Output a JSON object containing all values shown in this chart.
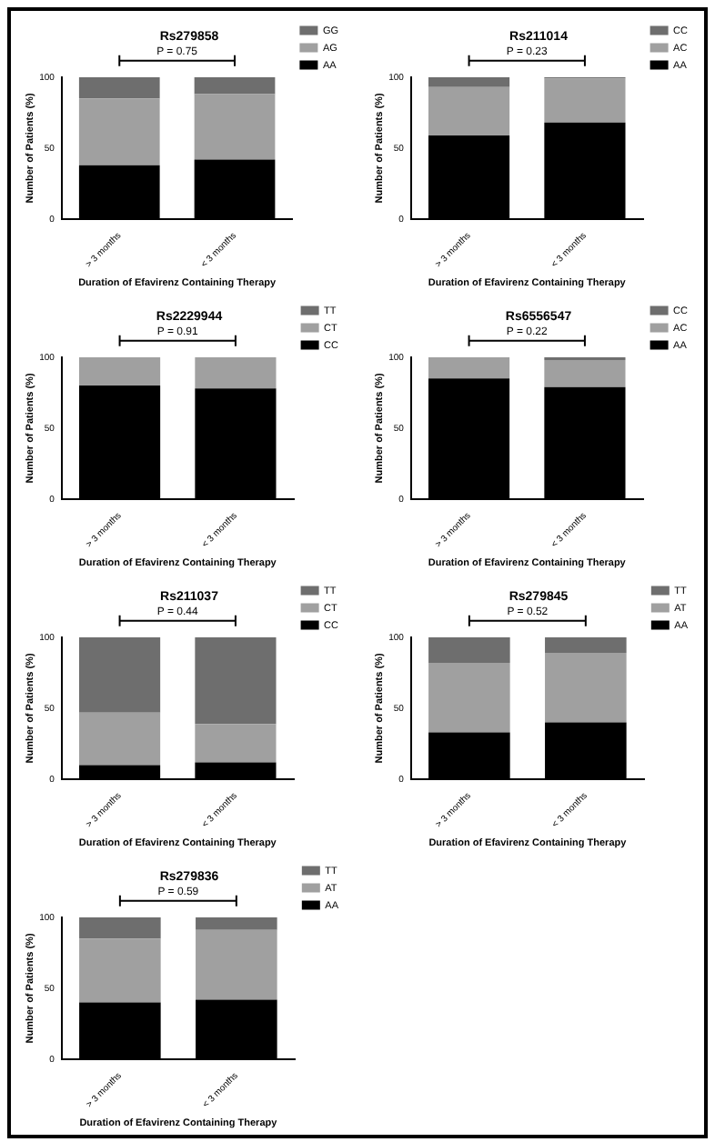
{
  "chart_data": [
    {
      "type": "bar",
      "title": "Rs279858",
      "xlabel": "Duration of Efavirenz Containing Therapy",
      "ylabel": "Number of Patients (%)",
      "categories": [
        "> 3 months",
        "< 3 months"
      ],
      "stacked": true,
      "ylim": [
        0,
        100
      ],
      "yticks": [
        0,
        50,
        100
      ],
      "grid": false,
      "legend": "right",
      "annotations": [
        "P = 0.75"
      ],
      "series": [
        {
          "name": "AA",
          "color": "#000000",
          "values": [
            38,
            42
          ]
        },
        {
          "name": "AG",
          "color": "#a0a0a0",
          "values": [
            47,
            46
          ]
        },
        {
          "name": "GG",
          "color": "#6e6e6e",
          "values": [
            15,
            12
          ]
        }
      ]
    },
    {
      "type": "bar",
      "title": "Rs211014",
      "xlabel": "Duration of Efavirenz Containing Therapy",
      "ylabel": "Number of Patients (%)",
      "categories": [
        "> 3 months",
        "< 3 months"
      ],
      "stacked": true,
      "ylim": [
        0,
        100
      ],
      "yticks": [
        0,
        50,
        100
      ],
      "grid": false,
      "legend": "right",
      "annotations": [
        "P = 0.23"
      ],
      "series": [
        {
          "name": "AA",
          "color": "#000000",
          "values": [
            59,
            68
          ]
        },
        {
          "name": "AC",
          "color": "#a0a0a0",
          "values": [
            34,
            31
          ]
        },
        {
          "name": "CC",
          "color": "#6e6e6e",
          "values": [
            7,
            1
          ]
        }
      ]
    },
    {
      "type": "bar",
      "title": "Rs2229944",
      "xlabel": "Duration of Efavirenz Containing Therapy",
      "ylabel": "Number of Patients (%)",
      "categories": [
        "> 3 months",
        "< 3 months"
      ],
      "stacked": true,
      "ylim": [
        0,
        100
      ],
      "yticks": [
        0,
        50,
        100
      ],
      "grid": false,
      "legend": "right",
      "annotations": [
        "P = 0.91"
      ],
      "series": [
        {
          "name": "CC",
          "color": "#000000",
          "values": [
            80,
            78
          ]
        },
        {
          "name": "CT",
          "color": "#a0a0a0",
          "values": [
            20,
            22
          ]
        },
        {
          "name": "TT",
          "color": "#6e6e6e",
          "values": [
            0,
            0
          ]
        }
      ]
    },
    {
      "type": "bar",
      "title": "Rs6556547",
      "xlabel": "Duration of Efavirenz Containing Therapy",
      "ylabel": "Number of Patients (%)",
      "categories": [
        "> 3 months",
        "< 3 months"
      ],
      "stacked": true,
      "ylim": [
        0,
        100
      ],
      "yticks": [
        0,
        50,
        100
      ],
      "grid": false,
      "legend": "right",
      "annotations": [
        "P = 0.22"
      ],
      "series": [
        {
          "name": "AA",
          "color": "#000000",
          "values": [
            85,
            79
          ]
        },
        {
          "name": "AC",
          "color": "#a0a0a0",
          "values": [
            15,
            19
          ]
        },
        {
          "name": "CC",
          "color": "#6e6e6e",
          "values": [
            0,
            2
          ]
        }
      ]
    },
    {
      "type": "bar",
      "title": "Rs211037",
      "xlabel": "Duration of Efavirenz Containing Therapy",
      "ylabel": "Number of Patients (%)",
      "categories": [
        "> 3 months",
        "< 3 months"
      ],
      "stacked": true,
      "ylim": [
        0,
        100
      ],
      "yticks": [
        0,
        50,
        100
      ],
      "grid": false,
      "legend": "right",
      "annotations": [
        "P = 0.44"
      ],
      "series": [
        {
          "name": "CC",
          "color": "#000000",
          "values": [
            10,
            12
          ]
        },
        {
          "name": "CT",
          "color": "#a0a0a0",
          "values": [
            37,
            27
          ]
        },
        {
          "name": "TT",
          "color": "#6e6e6e",
          "values": [
            53,
            61
          ]
        }
      ]
    },
    {
      "type": "bar",
      "title": "Rs279845",
      "xlabel": "Duration of Efavirenz Containing Therapy",
      "ylabel": "Number of Patients (%)",
      "categories": [
        "> 3 months",
        "< 3 months"
      ],
      "stacked": true,
      "ylim": [
        0,
        100
      ],
      "yticks": [
        0,
        50,
        100
      ],
      "grid": false,
      "legend": "right",
      "annotations": [
        "P = 0.52"
      ],
      "series": [
        {
          "name": "AA",
          "color": "#000000",
          "values": [
            33,
            40
          ]
        },
        {
          "name": "AT",
          "color": "#a0a0a0",
          "values": [
            49,
            49
          ]
        },
        {
          "name": "TT",
          "color": "#6e6e6e",
          "values": [
            18,
            11
          ]
        }
      ]
    },
    {
      "type": "bar",
      "title": "Rs279836",
      "xlabel": "Duration of Efavirenz Containing Therapy",
      "ylabel": "Number of Patients (%)",
      "categories": [
        "> 3 months",
        "< 3 months"
      ],
      "stacked": true,
      "ylim": [
        0,
        100
      ],
      "yticks": [
        0,
        50,
        100
      ],
      "grid": false,
      "legend": "right",
      "annotations": [
        "P = 0.59"
      ],
      "series": [
        {
          "name": "AA",
          "color": "#000000",
          "values": [
            40,
            42
          ]
        },
        {
          "name": "AT",
          "color": "#a0a0a0",
          "values": [
            45,
            49
          ]
        },
        {
          "name": "TT",
          "color": "#6e6e6e",
          "values": [
            15,
            9
          ]
        }
      ]
    }
  ]
}
